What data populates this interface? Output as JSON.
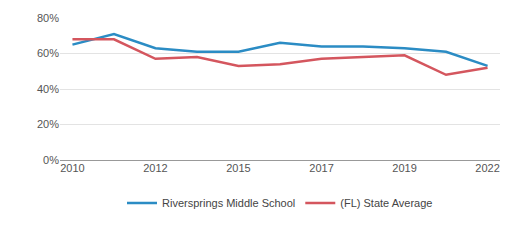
{
  "chart_data": {
    "type": "line",
    "categories": [
      "2010",
      null,
      "2012",
      null,
      "2015",
      null,
      "2017",
      null,
      "2019",
      null,
      "2022"
    ],
    "series": [
      {
        "name": "Riversprings Middle School",
        "color": "#2b8cc4",
        "values": [
          65,
          71,
          63,
          61,
          61,
          66,
          64,
          64,
          63,
          61,
          53
        ]
      },
      {
        "name": "(FL) State Average",
        "color": "#d4565e",
        "values": [
          68,
          68,
          57,
          58,
          53,
          54,
          57,
          58,
          59,
          48,
          52
        ]
      }
    ],
    "ylim": [
      0,
      80
    ],
    "yticks": [
      {
        "value": 0,
        "label": "0%"
      },
      {
        "value": 20,
        "label": "20%"
      },
      {
        "value": 40,
        "label": "40%"
      },
      {
        "value": 60,
        "label": "60%"
      },
      {
        "value": 80,
        "label": "80%"
      }
    ],
    "grid": true,
    "legend": "bottom"
  }
}
